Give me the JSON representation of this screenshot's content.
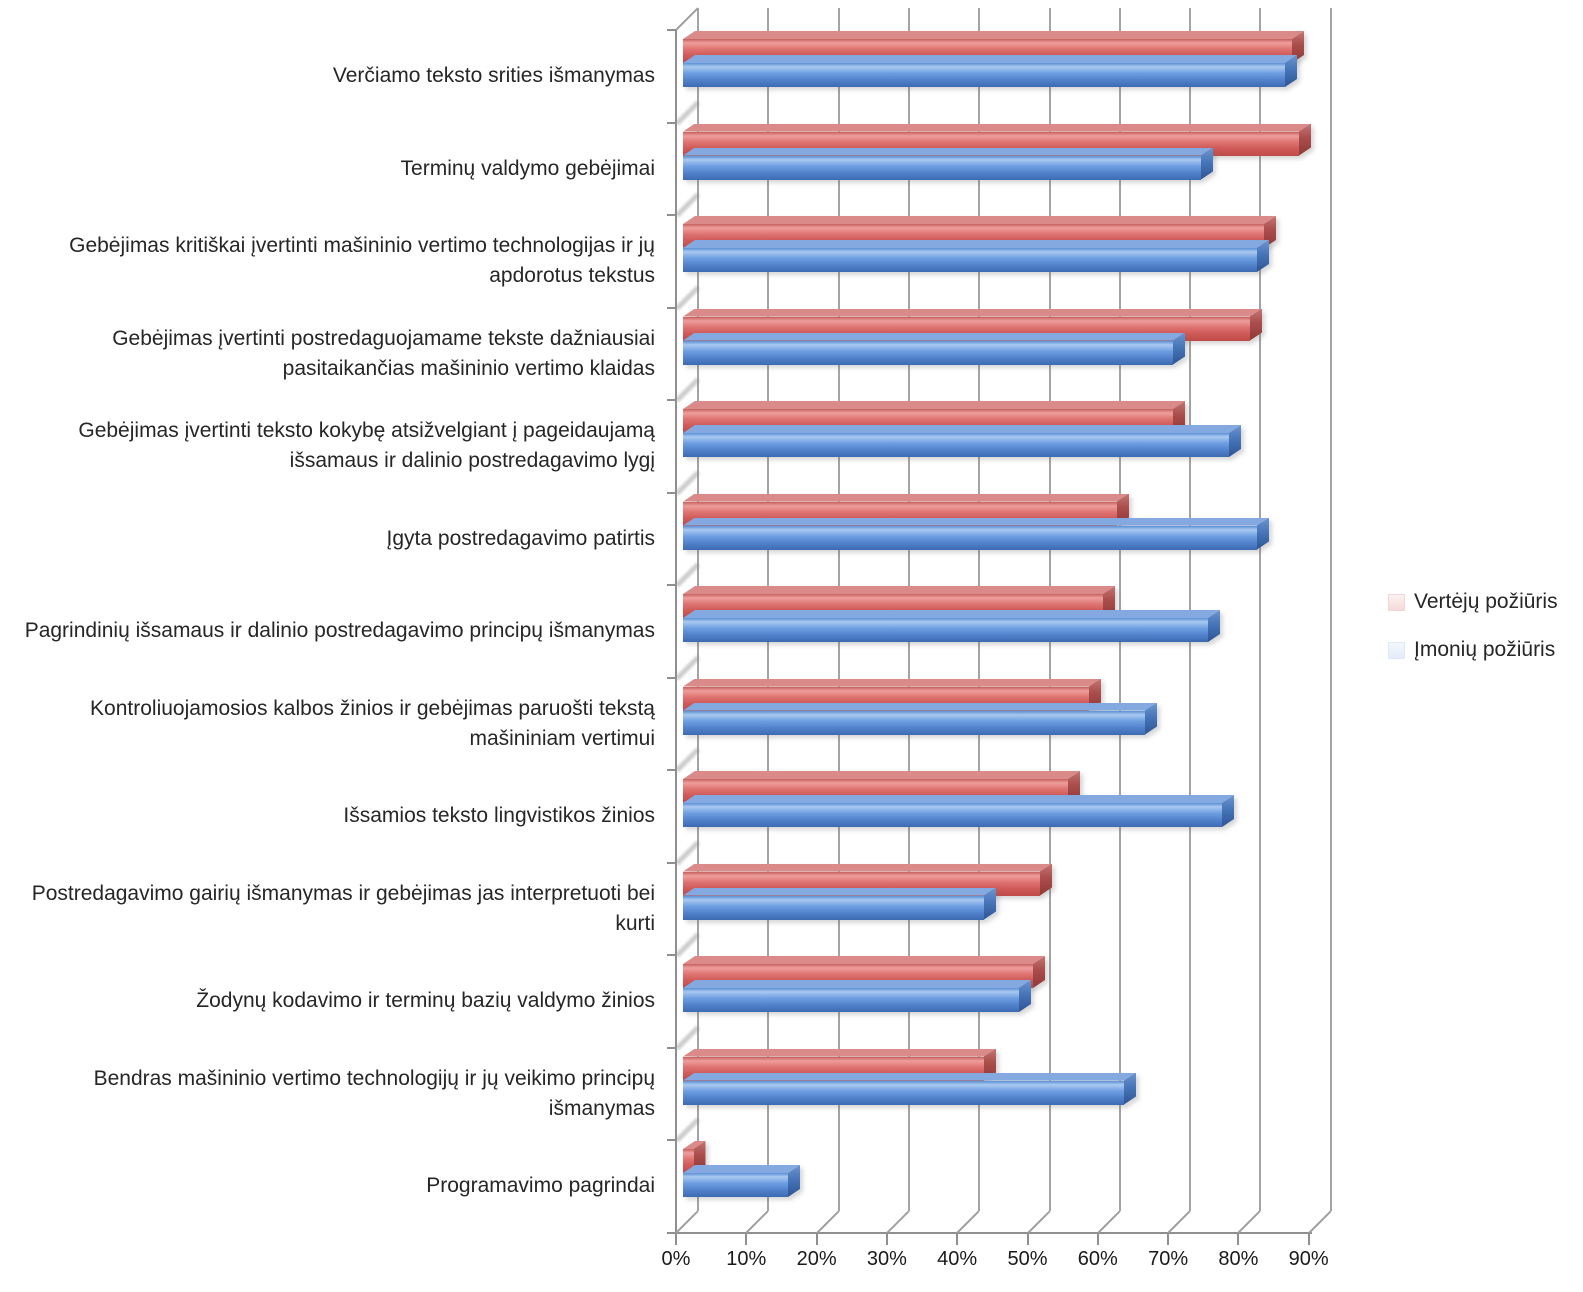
{
  "chart_data": {
    "type": "bar",
    "orientation": "horizontal",
    "style": "3d",
    "title": "",
    "xlabel": "",
    "ylabel": "",
    "grid": true,
    "categories": [
      "Verčiamo teksto srities išmanymas",
      "Terminų valdymo gebėjimai",
      "Gebėjimas kritiškai įvertinti mašininio vertimo technologijas ir jų apdorotus tekstus",
      "Gebėjimas įvertinti postredaguojamame tekste dažniausiai pasitaikančias mašininio vertimo klaidas",
      "Gebėjimas įvertinti teksto kokybę atsižvelgiant į pageidaujamą išsamaus ir dalinio postredagavimo lygį",
      "Įgyta postredagavimo patirtis",
      "Pagrindinių išsamaus ir dalinio postredagavimo principų išmanymas",
      "Kontroliuojamosios kalbos žinios ir gebėjimas paruošti tekstą mašininiam vertimui",
      "Išsamios teksto lingvistikos žinios",
      "Postredagavimo gairių išmanymas ir gebėjimas jas interpretuoti bei kurti",
      "Žodynų kodavimo ir terminų bazių valdymo žinios",
      "Bendras mašininio vertimo technologijų ir jų veikimo principų išmanymas",
      "Programavimo pagrindai"
    ],
    "series": [
      {
        "name": "Vertėjų požiūris",
        "color": "#d05a58",
        "values": [
          87,
          88,
          83,
          81,
          70,
          62,
          60,
          58,
          55,
          51,
          50,
          43,
          1.5
        ]
      },
      {
        "name": "Įmonių požiūris",
        "color": "#5484cd",
        "values": [
          86,
          74,
          82,
          70,
          78,
          82,
          75,
          66,
          77,
          43,
          48,
          63,
          15
        ]
      }
    ],
    "x_axis": {
      "min": 0,
      "max": 90,
      "step": 10,
      "unit": "%",
      "tick_labels": [
        "0%",
        "10%",
        "20%",
        "30%",
        "40%",
        "50%",
        "60%",
        "70%",
        "80%",
        "90%"
      ]
    },
    "legend": {
      "position": "right",
      "entries": [
        "Vertėjų požiūris",
        "Įmonių požiūris"
      ]
    }
  }
}
